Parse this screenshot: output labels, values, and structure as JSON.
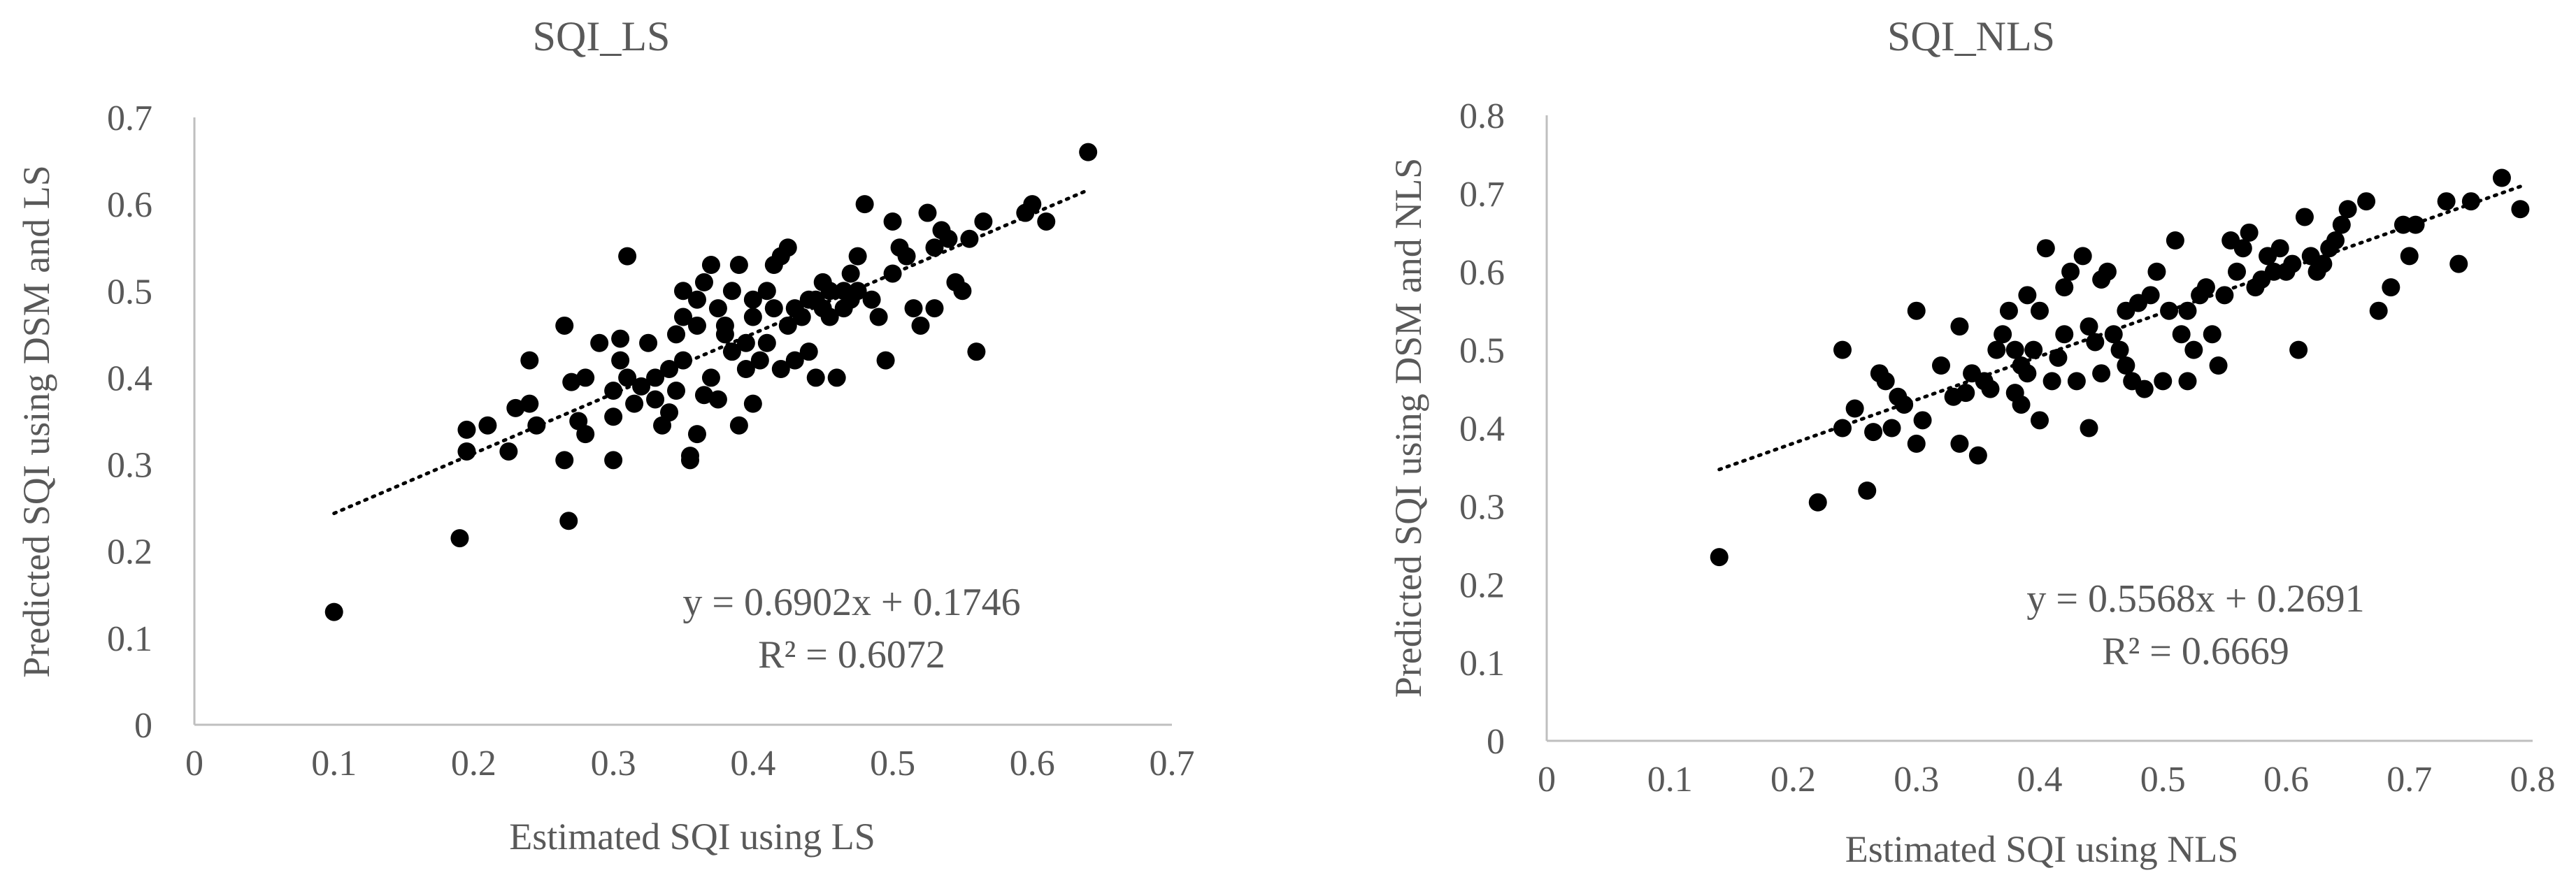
{
  "chart_data": [
    {
      "type": "scatter",
      "title": "SQI_LS",
      "xlabel": "Estimated SQI using LS",
      "ylabel": "Predicted SQI using DSM and LS",
      "xlim": [
        0,
        0.7
      ],
      "ylim": [
        0,
        0.7
      ],
      "xticks": [
        "0",
        "0.1",
        "0.2",
        "0.3",
        "0.4",
        "0.5",
        "0.6",
        "0.7"
      ],
      "yticks": [
        "0",
        "0.1",
        "0.2",
        "0.3",
        "0.4",
        "0.5",
        "0.6",
        "0.7"
      ],
      "grid": false,
      "trendline": {
        "slope": 0.6902,
        "intercept": 0.1746,
        "x_range": [
          0.1,
          0.64
        ]
      },
      "equation": "y = 0.6902x + 0.1746",
      "r2": "R² = 0.6072",
      "points": [
        [
          0.1,
          0.13
        ],
        [
          0.19,
          0.215
        ],
        [
          0.195,
          0.315
        ],
        [
          0.195,
          0.34
        ],
        [
          0.21,
          0.345
        ],
        [
          0.225,
          0.315
        ],
        [
          0.23,
          0.365
        ],
        [
          0.24,
          0.42
        ],
        [
          0.24,
          0.37
        ],
        [
          0.245,
          0.345
        ],
        [
          0.265,
          0.46
        ],
        [
          0.265,
          0.305
        ],
        [
          0.268,
          0.235
        ],
        [
          0.27,
          0.395
        ],
        [
          0.275,
          0.35
        ],
        [
          0.28,
          0.335
        ],
        [
          0.28,
          0.4
        ],
        [
          0.29,
          0.44
        ],
        [
          0.3,
          0.355
        ],
        [
          0.3,
          0.385
        ],
        [
          0.3,
          0.305
        ],
        [
          0.305,
          0.445
        ],
        [
          0.305,
          0.42
        ],
        [
          0.31,
          0.54
        ],
        [
          0.31,
          0.4
        ],
        [
          0.315,
          0.37
        ],
        [
          0.32,
          0.39
        ],
        [
          0.325,
          0.44
        ],
        [
          0.33,
          0.4
        ],
        [
          0.33,
          0.375
        ],
        [
          0.335,
          0.345
        ],
        [
          0.34,
          0.36
        ],
        [
          0.34,
          0.41
        ],
        [
          0.345,
          0.385
        ],
        [
          0.345,
          0.45
        ],
        [
          0.35,
          0.47
        ],
        [
          0.35,
          0.5
        ],
        [
          0.35,
          0.42
        ],
        [
          0.355,
          0.31
        ],
        [
          0.355,
          0.305
        ],
        [
          0.36,
          0.46
        ],
        [
          0.36,
          0.335
        ],
        [
          0.36,
          0.49
        ],
        [
          0.365,
          0.51
        ],
        [
          0.365,
          0.38
        ],
        [
          0.37,
          0.53
        ],
        [
          0.37,
          0.4
        ],
        [
          0.375,
          0.48
        ],
        [
          0.375,
          0.375
        ],
        [
          0.38,
          0.45
        ],
        [
          0.38,
          0.46
        ],
        [
          0.385,
          0.5
        ],
        [
          0.385,
          0.43
        ],
        [
          0.39,
          0.345
        ],
        [
          0.39,
          0.53
        ],
        [
          0.395,
          0.44
        ],
        [
          0.395,
          0.41
        ],
        [
          0.4,
          0.49
        ],
        [
          0.4,
          0.37
        ],
        [
          0.4,
          0.47
        ],
        [
          0.405,
          0.42
        ],
        [
          0.41,
          0.44
        ],
        [
          0.41,
          0.5
        ],
        [
          0.415,
          0.48
        ],
        [
          0.415,
          0.53
        ],
        [
          0.42,
          0.41
        ],
        [
          0.42,
          0.54
        ],
        [
          0.425,
          0.55
        ],
        [
          0.425,
          0.46
        ],
        [
          0.43,
          0.48
        ],
        [
          0.43,
          0.42
        ],
        [
          0.435,
          0.47
        ],
        [
          0.44,
          0.49
        ],
        [
          0.44,
          0.43
        ],
        [
          0.445,
          0.49
        ],
        [
          0.445,
          0.4
        ],
        [
          0.45,
          0.51
        ],
        [
          0.45,
          0.48
        ],
        [
          0.455,
          0.5
        ],
        [
          0.455,
          0.47
        ],
        [
          0.46,
          0.4
        ],
        [
          0.465,
          0.48
        ],
        [
          0.465,
          0.5
        ],
        [
          0.47,
          0.52
        ],
        [
          0.47,
          0.49
        ],
        [
          0.475,
          0.54
        ],
        [
          0.475,
          0.5
        ],
        [
          0.48,
          0.6
        ],
        [
          0.485,
          0.49
        ],
        [
          0.49,
          0.47
        ],
        [
          0.495,
          0.42
        ],
        [
          0.5,
          0.58
        ],
        [
          0.5,
          0.52
        ],
        [
          0.505,
          0.55
        ],
        [
          0.51,
          0.54
        ],
        [
          0.515,
          0.48
        ],
        [
          0.52,
          0.46
        ],
        [
          0.525,
          0.59
        ],
        [
          0.53,
          0.48
        ],
        [
          0.53,
          0.55
        ],
        [
          0.535,
          0.57
        ],
        [
          0.54,
          0.56
        ],
        [
          0.545,
          0.51
        ],
        [
          0.55,
          0.5
        ],
        [
          0.555,
          0.56
        ],
        [
          0.56,
          0.43
        ],
        [
          0.565,
          0.58
        ],
        [
          0.595,
          0.59
        ],
        [
          0.6,
          0.6
        ],
        [
          0.61,
          0.58
        ],
        [
          0.64,
          0.66
        ]
      ]
    },
    {
      "type": "scatter",
      "title": "SQI_NLS",
      "xlabel": "Estimated SQI using NLS",
      "ylabel": "Predicted SQI using DSM and NLS",
      "xlim": [
        0,
        0.8
      ],
      "ylim": [
        0,
        0.8
      ],
      "xticks": [
        "0",
        "0.1",
        "0.2",
        "0.3",
        "0.4",
        "0.5",
        "0.6",
        "0.7",
        "0.8"
      ],
      "yticks": [
        "0",
        "0.1",
        "0.2",
        "0.3",
        "0.4",
        "0.5",
        "0.6",
        "0.7",
        "0.8"
      ],
      "grid": false,
      "trendline": {
        "slope": 0.5568,
        "intercept": 0.2691,
        "x_range": [
          0.14,
          0.79
        ]
      },
      "equation": "y = 0.5568x + 0.2691",
      "r2": "R² = 0.6669",
      "points": [
        [
          0.14,
          0.235
        ],
        [
          0.22,
          0.305
        ],
        [
          0.24,
          0.4
        ],
        [
          0.24,
          0.5
        ],
        [
          0.25,
          0.425
        ],
        [
          0.26,
          0.32
        ],
        [
          0.265,
          0.395
        ],
        [
          0.27,
          0.47
        ],
        [
          0.275,
          0.46
        ],
        [
          0.28,
          0.4
        ],
        [
          0.285,
          0.44
        ],
        [
          0.29,
          0.43
        ],
        [
          0.3,
          0.55
        ],
        [
          0.3,
          0.38
        ],
        [
          0.305,
          0.41
        ],
        [
          0.32,
          0.48
        ],
        [
          0.33,
          0.44
        ],
        [
          0.335,
          0.53
        ],
        [
          0.335,
          0.38
        ],
        [
          0.34,
          0.445
        ],
        [
          0.345,
          0.47
        ],
        [
          0.35,
          0.365
        ],
        [
          0.355,
          0.46
        ],
        [
          0.36,
          0.45
        ],
        [
          0.365,
          0.5
        ],
        [
          0.37,
          0.52
        ],
        [
          0.375,
          0.55
        ],
        [
          0.38,
          0.5
        ],
        [
          0.38,
          0.445
        ],
        [
          0.385,
          0.43
        ],
        [
          0.385,
          0.48
        ],
        [
          0.39,
          0.57
        ],
        [
          0.39,
          0.47
        ],
        [
          0.395,
          0.5
        ],
        [
          0.4,
          0.41
        ],
        [
          0.4,
          0.55
        ],
        [
          0.405,
          0.63
        ],
        [
          0.41,
          0.46
        ],
        [
          0.415,
          0.49
        ],
        [
          0.42,
          0.58
        ],
        [
          0.42,
          0.52
        ],
        [
          0.425,
          0.6
        ],
        [
          0.43,
          0.46
        ],
        [
          0.435,
          0.62
        ],
        [
          0.44,
          0.4
        ],
        [
          0.44,
          0.53
        ],
        [
          0.445,
          0.51
        ],
        [
          0.45,
          0.59
        ],
        [
          0.45,
          0.47
        ],
        [
          0.455,
          0.6
        ],
        [
          0.46,
          0.52
        ],
        [
          0.465,
          0.5
        ],
        [
          0.47,
          0.48
        ],
        [
          0.47,
          0.55
        ],
        [
          0.475,
          0.46
        ],
        [
          0.48,
          0.56
        ],
        [
          0.485,
          0.45
        ],
        [
          0.49,
          0.57
        ],
        [
          0.495,
          0.6
        ],
        [
          0.5,
          0.46
        ],
        [
          0.505,
          0.55
        ],
        [
          0.51,
          0.64
        ],
        [
          0.515,
          0.52
        ],
        [
          0.52,
          0.55
        ],
        [
          0.52,
          0.46
        ],
        [
          0.525,
          0.5
        ],
        [
          0.53,
          0.57
        ],
        [
          0.535,
          0.58
        ],
        [
          0.54,
          0.52
        ],
        [
          0.545,
          0.48
        ],
        [
          0.55,
          0.57
        ],
        [
          0.555,
          0.64
        ],
        [
          0.56,
          0.6
        ],
        [
          0.565,
          0.63
        ],
        [
          0.57,
          0.65
        ],
        [
          0.575,
          0.58
        ],
        [
          0.58,
          0.59
        ],
        [
          0.585,
          0.62
        ],
        [
          0.59,
          0.6
        ],
        [
          0.595,
          0.63
        ],
        [
          0.6,
          0.6
        ],
        [
          0.605,
          0.61
        ],
        [
          0.61,
          0.5
        ],
        [
          0.615,
          0.67
        ],
        [
          0.62,
          0.62
        ],
        [
          0.625,
          0.6
        ],
        [
          0.63,
          0.61
        ],
        [
          0.635,
          0.63
        ],
        [
          0.64,
          0.64
        ],
        [
          0.645,
          0.66
        ],
        [
          0.65,
          0.68
        ],
        [
          0.665,
          0.69
        ],
        [
          0.675,
          0.55
        ],
        [
          0.685,
          0.58
        ],
        [
          0.695,
          0.66
        ],
        [
          0.7,
          0.62
        ],
        [
          0.705,
          0.66
        ],
        [
          0.73,
          0.69
        ],
        [
          0.74,
          0.61
        ],
        [
          0.75,
          0.69
        ],
        [
          0.775,
          0.72
        ],
        [
          0.79,
          0.68
        ]
      ]
    }
  ]
}
